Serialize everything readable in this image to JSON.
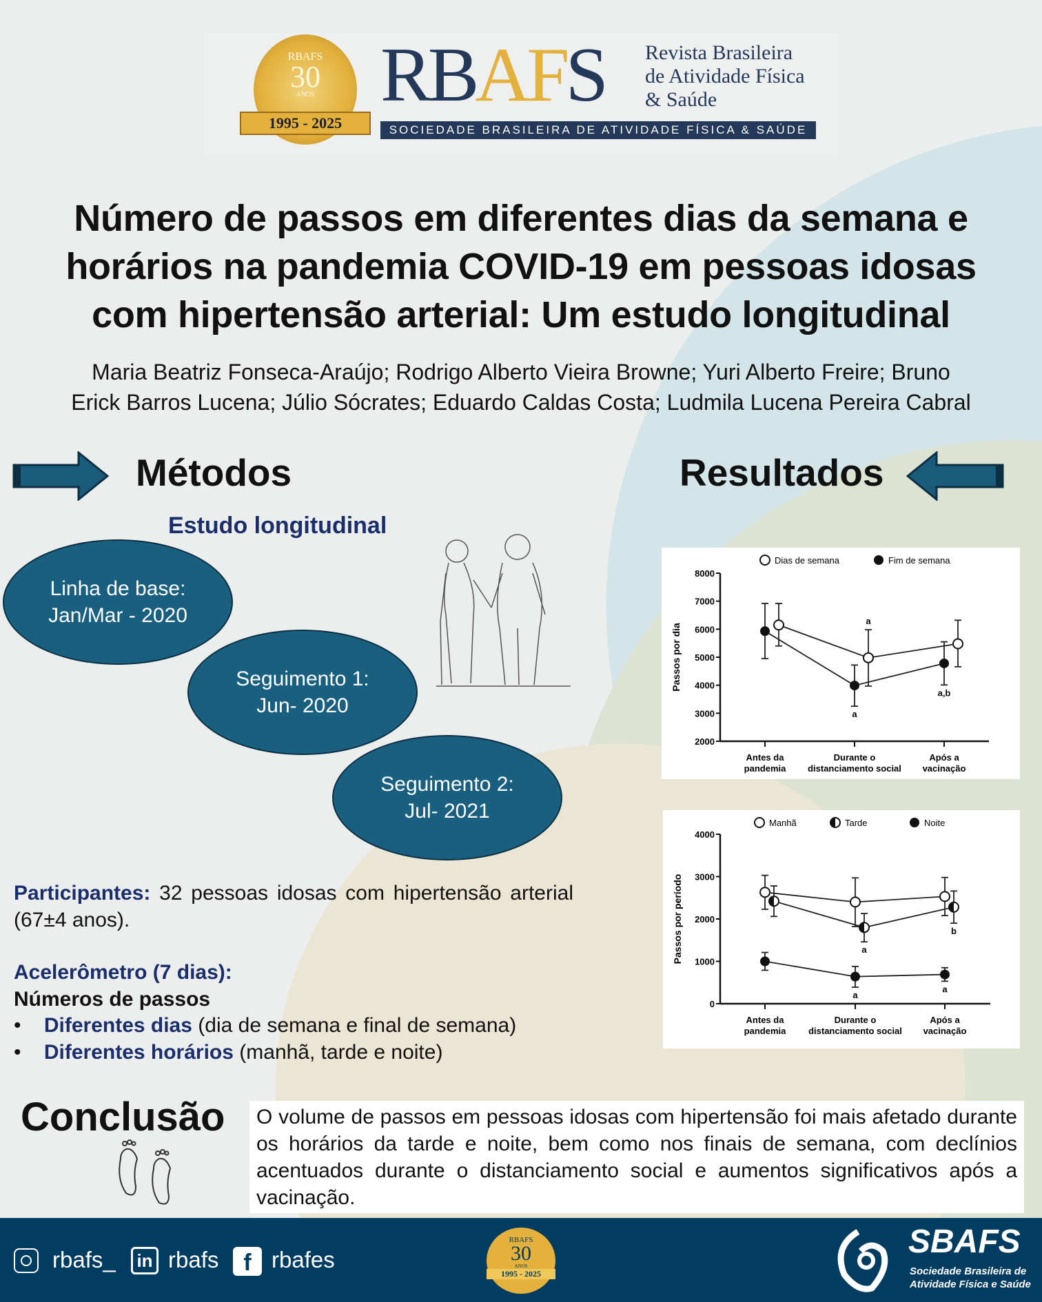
{
  "header": {
    "seal_text": [
      "RBAFS",
      "30",
      "ANOS",
      "1995 - 2025"
    ],
    "logo_letters": "RBAFS",
    "journal_name": [
      "Revista Brasileira",
      "de Atividade Física",
      "& Saúde"
    ],
    "society_banner": "SOCIEDADE BRASILEIRA DE ATIVIDADE FÍSICA & SAÚDE"
  },
  "title": [
    "Número de passos em diferentes dias da semana e",
    "horários na pandemia COVID-19 em pessoas idosas",
    "com hipertensão arterial: Um estudo longitudinal"
  ],
  "authors": [
    "Maria Beatriz Fonseca-Araújo; Rodrigo Alberto Vieira Browne; Yuri Alberto Freire; Bruno",
    "Erick Barros Lucena; Júlio Sócrates; Eduardo Caldas Costa; Ludmila Lucena Pereira Cabral"
  ],
  "methods": {
    "heading": "Métodos",
    "subheading": "Estudo longitudinal",
    "timeline": [
      {
        "l1": "Linha de base:",
        "l2": "Jan/Mar - 2020"
      },
      {
        "l1": "Seguimento 1:",
        "l2": "Jun- 2020"
      },
      {
        "l1": "Seguimento 2:",
        "l2": "Jul- 2021"
      }
    ],
    "participants_label": "Participantes:",
    "participants_text": " 32 pessoas idosas com hipertensão arterial  (67±4 anos).",
    "accel_label": "Acelerômetro (7 dias):",
    "steps_label": "Números de passos",
    "bullets": [
      {
        "bold": "Diferentes dias",
        "rest": " (dia de semana e final de semana)"
      },
      {
        "bold": "Diferentes horários",
        "rest": " (manhã, tarde e noite)"
      }
    ]
  },
  "results": {
    "heading": "Resultados"
  },
  "conclusion": {
    "heading": "Conclusão",
    "text": "O volume de passos em pessoas idosas com hipertensão foi mais afetado durante os horários da tarde e noite, bem como nos finais de semana, com declínios acentuados durante o distanciamento social e aumentos significativos após a vacinação."
  },
  "footer": {
    "instagram": "rbafs_",
    "linkedin": "rbafs",
    "facebook": "rbafes",
    "sbafs": "SBAFS",
    "sbafs_sub": [
      "Sociedade Brasileira de",
      "Atividade Física e Saúde"
    ],
    "seal_text": [
      "RBAFS",
      "30",
      "ANOS",
      "1995 - 2025"
    ]
  },
  "colors": {
    "navy": "#1a2e6b",
    "ellipse": "#185f80",
    "footer": "#023c60",
    "gold": "#e3b13c"
  },
  "chart_data": [
    {
      "type": "line",
      "ylabel": "Passos por dia",
      "ylim": [
        2000,
        8000
      ],
      "yticks": [
        2000,
        3000,
        4000,
        5000,
        6000,
        7000,
        8000
      ],
      "categories": [
        [
          "Antes da",
          "pandemia"
        ],
        [
          "Durante o",
          "distanciamento social"
        ],
        [
          "Após a",
          "vacinação"
        ]
      ],
      "legend": "top",
      "series": [
        {
          "name": "Dias de semana",
          "marker": "open",
          "values": [
            6150,
            4980,
            5480
          ],
          "err_low": [
            5400,
            3970,
            4660
          ],
          "err_high": [
            6920,
            5980,
            6320
          ],
          "labels_above": [
            "",
            "a",
            ""
          ],
          "labels_below": [
            "",
            "",
            ""
          ]
        },
        {
          "name": "Fim de semana",
          "marker": "filled",
          "values": [
            5930,
            3990,
            4780
          ],
          "err_low": [
            4950,
            3250,
            4010
          ],
          "err_high": [
            6920,
            4720,
            5550
          ],
          "labels_above": [
            "",
            "",
            ""
          ],
          "labels_below": [
            "",
            "a",
            "a,b"
          ]
        }
      ]
    },
    {
      "type": "line",
      "ylabel": "Passos por período",
      "ylim": [
        0,
        4000
      ],
      "yticks": [
        0,
        1000,
        2000,
        3000,
        4000
      ],
      "categories": [
        [
          "Antes da",
          "pandemia"
        ],
        [
          "Durante o",
          "distanciamento social"
        ],
        [
          "Após a",
          "vacinação"
        ]
      ],
      "legend": "top",
      "series": [
        {
          "name": "Manhã",
          "marker": "open",
          "values": [
            2630,
            2400,
            2530
          ],
          "err_low": [
            2230,
            1820,
            2080
          ],
          "err_high": [
            3030,
            2970,
            2980
          ],
          "labels_above": [
            "",
            "",
            ""
          ],
          "labels_below": [
            "",
            "",
            ""
          ]
        },
        {
          "name": "Tarde",
          "marker": "half",
          "values": [
            2420,
            1800,
            2280
          ],
          "err_low": [
            2060,
            1460,
            1900
          ],
          "err_high": [
            2780,
            2130,
            2660
          ],
          "labels_above": [
            "",
            "",
            ""
          ],
          "labels_below": [
            "",
            "a",
            "b"
          ]
        },
        {
          "name": "Noite",
          "marker": "filled",
          "values": [
            1000,
            640,
            690
          ],
          "err_low": [
            790,
            390,
            530
          ],
          "err_high": [
            1210,
            880,
            850
          ],
          "labels_above": [
            "",
            "",
            ""
          ],
          "labels_below": [
            "",
            "a",
            "a"
          ]
        }
      ]
    }
  ]
}
